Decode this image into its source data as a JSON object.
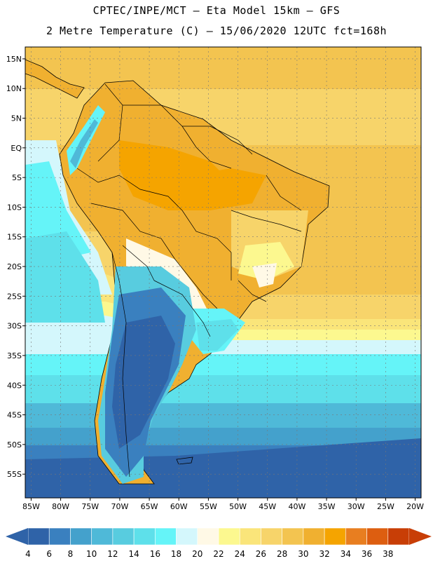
{
  "title_line1": "CPTEC/INPE/MCT –  Eta Model 15km – GFS",
  "title_line2": "2 Metre Temperature (C) – 15/06/2020 12UTC fct=168h",
  "map": {
    "lon_range": [
      -86,
      -19
    ],
    "lat_range": [
      -59,
      17
    ],
    "lon_ticks": [
      -85,
      -80,
      -75,
      -70,
      -65,
      -60,
      -55,
      -50,
      -45,
      -40,
      -35,
      -30,
      -25,
      -20
    ],
    "lon_tick_labels": [
      "85W",
      "80W",
      "75W",
      "70W",
      "65W",
      "60W",
      "55W",
      "50W",
      "45W",
      "40W",
      "35W",
      "30W",
      "25W",
      "20W"
    ],
    "lat_ticks": [
      15,
      10,
      5,
      0,
      -5,
      -10,
      -15,
      -20,
      -25,
      -30,
      -35,
      -40,
      -45,
      -50,
      -55
    ],
    "lat_tick_labels": [
      "15N",
      "10N",
      "5N",
      "EQ",
      "5S",
      "10S",
      "15S",
      "20S",
      "25S",
      "30S",
      "35S",
      "40S",
      "45S",
      "50S",
      "55S"
    ],
    "grid": true
  },
  "colorbar": {
    "values": [
      "4",
      "6",
      "8",
      "10",
      "12",
      "14",
      "16",
      "18",
      "20",
      "22",
      "24",
      "26",
      "28",
      "30",
      "32",
      "34",
      "36",
      "38"
    ],
    "colors": [
      "#2f63a8",
      "#3a80bf",
      "#44a1cc",
      "#4fb9d8",
      "#58ccdf",
      "#5ee0ea",
      "#65f4f8",
      "#d4f7fc",
      "#fff9e6",
      "#fcf88f",
      "#fae57a",
      "#f7d46a",
      "#f3c450",
      "#f0b030",
      "#f5a400",
      "#e87e20",
      "#dd5e10",
      "#c83e06"
    ]
  }
}
